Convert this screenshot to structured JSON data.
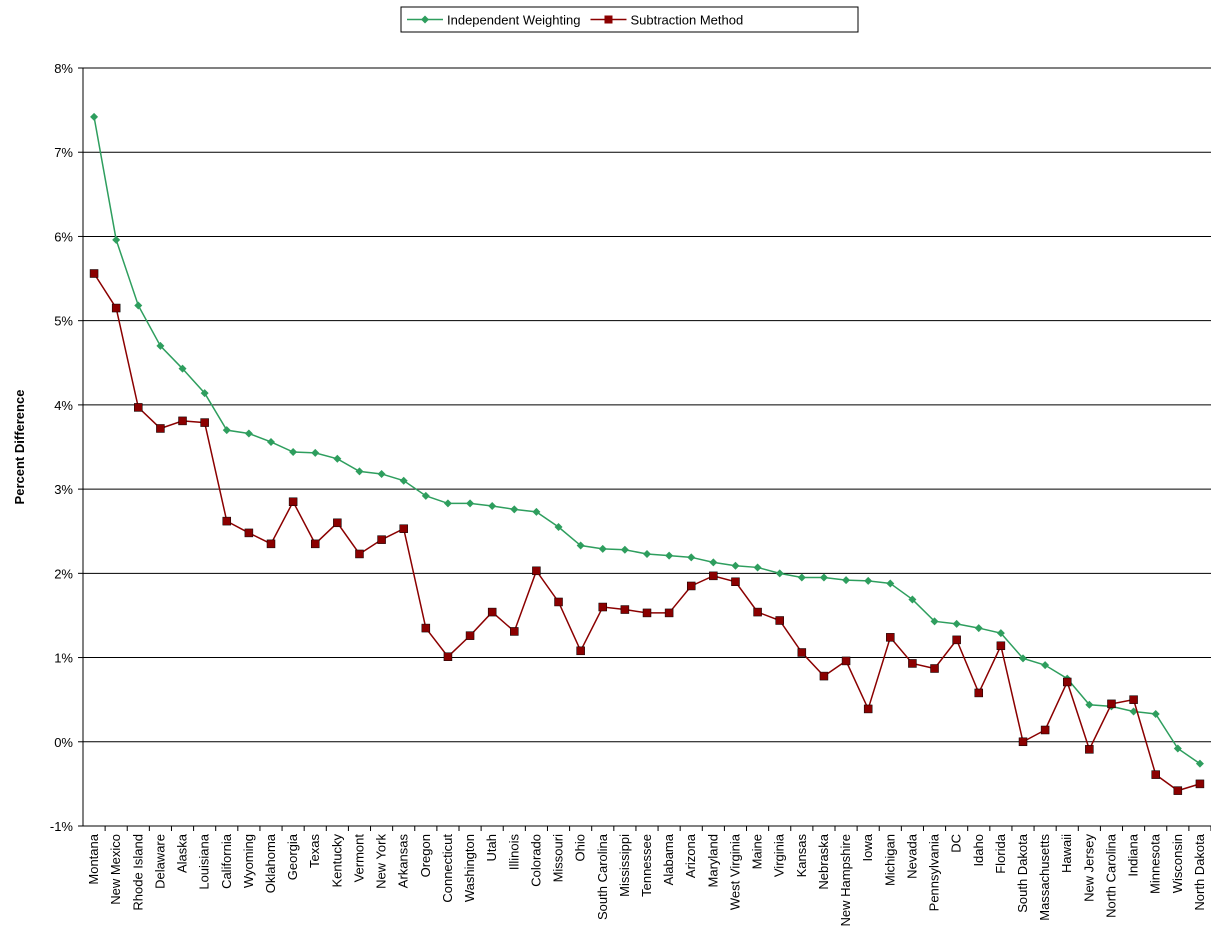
{
  "chart_data": {
    "type": "line",
    "y_label": "Percent Difference",
    "categories": [
      "Montana",
      "New Mexico",
      "Rhode Island",
      "Delaware",
      "Alaska",
      "Louisiana",
      "California",
      "Wyoming",
      "Oklahoma",
      "Georgia",
      "Texas",
      "Kentucky",
      "Vermont",
      "New York",
      "Arkansas",
      "Oregon",
      "Connecticut",
      "Washington",
      "Utah",
      "Illinois",
      "Colorado",
      "Missouri",
      "Ohio",
      "South Carolina",
      "Mississippi",
      "Tennessee",
      "Alabama",
      "Arizona",
      "Maryland",
      "West Virginia",
      "Maine",
      "Virginia",
      "Kansas",
      "Nebraska",
      "New Hampshire",
      "Iowa",
      "Michigan",
      "Nevada",
      "Pennsylvania",
      "DC",
      "Idaho",
      "Florida",
      "South Dakota",
      "Massachusetts",
      "Hawaii",
      "New Jersey",
      "North Carolina",
      "Indiana",
      "Minnesota",
      "Wisconsin",
      "North Dakota"
    ],
    "series": [
      {
        "name": "Independent Weighting",
        "color": "#2e9e5e",
        "marker": "diamond",
        "values": [
          7.42,
          5.96,
          5.18,
          4.7,
          4.43,
          4.14,
          3.7,
          3.66,
          3.56,
          3.44,
          3.43,
          3.36,
          3.21,
          3.18,
          3.1,
          2.92,
          2.83,
          2.83,
          2.8,
          2.76,
          2.73,
          2.55,
          2.33,
          2.29,
          2.28,
          2.23,
          2.21,
          2.19,
          2.13,
          2.09,
          2.07,
          2.0,
          1.95,
          1.95,
          1.92,
          1.91,
          1.88,
          1.69,
          1.43,
          1.4,
          1.35,
          1.29,
          0.99,
          0.91,
          0.75,
          0.44,
          0.42,
          0.36,
          0.33,
          -0.08,
          -0.26
        ]
      },
      {
        "name": "Subtraction Method",
        "color": "#8b0000",
        "marker": "square",
        "values": [
          5.56,
          5.15,
          3.97,
          3.72,
          3.81,
          3.79,
          2.62,
          2.48,
          2.35,
          2.85,
          2.35,
          2.6,
          2.23,
          2.4,
          2.53,
          1.35,
          1.01,
          1.26,
          1.54,
          1.31,
          2.03,
          1.66,
          1.08,
          1.6,
          1.57,
          1.53,
          1.53,
          1.85,
          1.97,
          1.9,
          1.54,
          1.44,
          1.06,
          0.78,
          0.96,
          0.39,
          1.24,
          0.93,
          0.87,
          1.21,
          0.58,
          1.14,
          0.0,
          0.14,
          0.71,
          -0.09,
          0.45,
          0.5,
          -0.39,
          -0.58,
          -0.5
        ]
      }
    ],
    "ylim": [
      -1,
      8
    ],
    "yticks": [
      {
        "value": -1,
        "label": "-1%"
      },
      {
        "value": 0,
        "label": "0%"
      },
      {
        "value": 1,
        "label": "1%"
      },
      {
        "value": 2,
        "label": "2%"
      },
      {
        "value": 3,
        "label": "3%"
      },
      {
        "value": 4,
        "label": "4%"
      },
      {
        "value": 5,
        "label": "5%"
      },
      {
        "value": 6,
        "label": "6%"
      },
      {
        "value": 7,
        "label": "7%"
      },
      {
        "value": 8,
        "label": "8%"
      }
    ],
    "grid": true,
    "legend": "top"
  }
}
